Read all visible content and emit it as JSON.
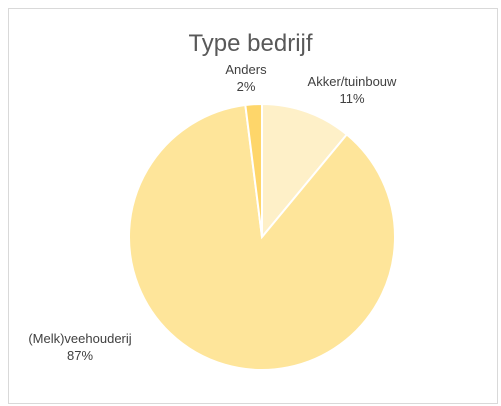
{
  "chart_data": {
    "type": "pie",
    "title": "Type bedrijf",
    "slices": [
      {
        "label": "Akker/tuinbouw",
        "value": 11,
        "display": "11%",
        "color": "#fef0c8"
      },
      {
        "label": "(Melk)veehouderij",
        "value": 87,
        "display": "87%",
        "color": "#fee59a"
      },
      {
        "label": "Anders",
        "value": 2,
        "display": "2%",
        "color": "#fed66a"
      }
    ],
    "legend": "none",
    "data_labels": "outside-end"
  }
}
